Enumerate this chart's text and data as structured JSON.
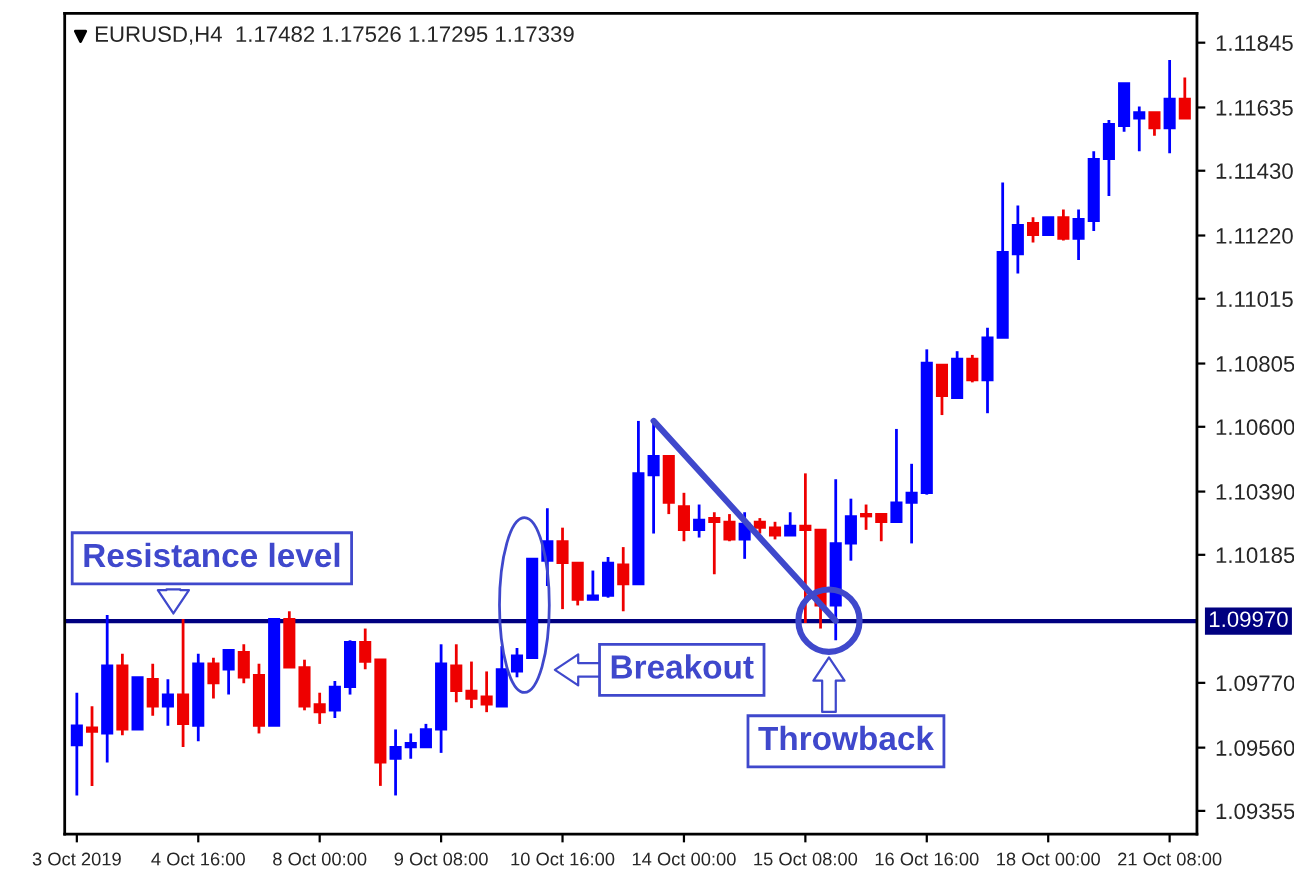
{
  "chart_data": {
    "type": "candlestick",
    "title": "EURUSD,H4  1.17482 1.17526 1.17295 1.17339",
    "categories": [
      "3 Oct 2019",
      null,
      null,
      null,
      null,
      null,
      null,
      null,
      "4 Oct 16:00",
      null,
      null,
      null,
      null,
      null,
      null,
      null,
      "8 Oct 00:00",
      null,
      null,
      null,
      null,
      null,
      null,
      null,
      "9 Oct 08:00",
      null,
      null,
      null,
      null,
      null,
      null,
      null,
      "10 Oct 16:00",
      null,
      null,
      null,
      null,
      null,
      null,
      null,
      "14 Oct 00:00",
      null,
      null,
      null,
      null,
      null,
      null,
      null,
      "15 Oct 08:00",
      null,
      null,
      null,
      null,
      null,
      null,
      null,
      "16 Oct 16:00",
      null,
      null,
      null,
      null,
      null,
      null,
      null,
      "18 Oct 00:00",
      null,
      null,
      null,
      null,
      null,
      null,
      null,
      "21 Oct 08:00",
      null
    ],
    "ohlc": [
      [
        1.09568,
        1.09738,
        1.09405,
        1.09631
      ],
      [
        1.09625,
        1.09694,
        1.09436,
        1.09612
      ],
      [
        1.09606,
        1.0999,
        1.09512,
        1.09826
      ],
      [
        1.09826,
        1.09864,
        1.096,
        1.09619
      ],
      [
        1.09619,
        1.09788,
        1.09619,
        1.09788
      ],
      [
        1.09782,
        1.09832,
        1.09663,
        1.09694
      ],
      [
        1.09694,
        1.09782,
        1.09631,
        1.09732
      ],
      [
        1.09732,
        1.09977,
        1.09562,
        1.09637
      ],
      [
        1.09631,
        1.09864,
        1.09581,
        1.09832
      ],
      [
        1.09832,
        1.09851,
        1.09719,
        1.09769
      ],
      [
        1.09814,
        1.09876,
        1.09732,
        1.09876
      ],
      [
        1.0987,
        1.09895,
        1.09769,
        1.09788
      ],
      [
        1.09795,
        1.09832,
        1.09606,
        1.09631
      ],
      [
        1.09631,
        1.09977,
        1.09631,
        1.09977
      ],
      [
        1.09977,
        1.10002,
        1.0982,
        1.0982
      ],
      [
        1.0982,
        1.09845,
        1.09681,
        1.09694
      ],
      [
        1.097,
        1.09738,
        1.09637,
        1.09675
      ],
      [
        1.09681,
        1.09776,
        1.09656,
        1.09757
      ],
      [
        1.09757,
        1.09908,
        1.09732,
        1.09902
      ],
      [
        1.09902,
        1.09946,
        1.09814,
        1.09839
      ],
      [
        1.09845,
        1.09845,
        1.09436,
        1.09512
      ],
      [
        1.09524,
        1.09619,
        1.09405,
        1.09562
      ],
      [
        1.09562,
        1.09606,
        1.09524,
        1.09575
      ],
      [
        1.09562,
        1.09637,
        1.09562,
        1.09619
      ],
      [
        1.09619,
        1.09895,
        1.09543,
        1.09832
      ],
      [
        1.09826,
        1.09895,
        1.09707,
        1.09744
      ],
      [
        1.09744,
        1.09839,
        1.09688,
        1.09719
      ],
      [
        1.09725,
        1.09807,
        1.09675,
        1.097
      ],
      [
        1.09694,
        1.09889,
        1.09694,
        1.09814
      ],
      [
        1.09807,
        1.09883,
        1.09788,
        1.09858
      ],
      [
        1.09851,
        1.10172,
        1.09851,
        1.10172
      ],
      [
        1.10166,
        1.10336,
        1.10084,
        1.10229
      ],
      [
        1.10229,
        1.10273,
        1.10009,
        1.10159
      ],
      [
        1.10159,
        1.10159,
        1.10021,
        1.1004
      ],
      [
        1.1004,
        1.10134,
        1.1004,
        1.10053
      ],
      [
        1.10053,
        1.10178,
        1.10046,
        1.10159
      ],
      [
        1.10153,
        1.1021,
        1.10002,
        1.1009
      ],
      [
        1.1009,
        1.10619,
        1.1009,
        1.10449
      ],
      [
        1.10443,
        1.10625,
        1.10254,
        1.10505
      ],
      [
        1.10505,
        1.10505,
        1.10317,
        1.10354
      ],
      [
        1.10342,
        1.10386,
        1.10229,
        1.10266
      ],
      [
        1.10266,
        1.10348,
        1.10241,
        1.10298
      ],
      [
        1.10304,
        1.10323,
        1.10122,
        1.10292
      ],
      [
        1.10292,
        1.10317,
        1.10229,
        1.10235
      ],
      [
        1.10235,
        1.10323,
        1.10172,
        1.10285
      ],
      [
        1.10292,
        1.10304,
        1.10254,
        1.10273
      ],
      [
        1.10273,
        1.10292,
        1.10235,
        1.10248
      ],
      [
        1.10248,
        1.10323,
        1.10248,
        1.10279
      ],
      [
        1.10279,
        1.10449,
        1.09964,
        1.10266
      ],
      [
        1.10266,
        1.10266,
        1.09946,
        1.10021
      ],
      [
        1.10021,
        1.1043,
        1.09908,
        1.10222
      ],
      [
        1.10222,
        1.10367,
        1.10166,
        1.1031
      ],
      [
        1.10317,
        1.10348,
        1.10266,
        1.1031
      ],
      [
        1.10317,
        1.10317,
        1.10229,
        1.10292
      ],
      [
        1.10292,
        1.10593,
        1.10292,
        1.10354
      ],
      [
        1.10354,
        1.1048,
        1.10222,
        1.10386
      ],
      [
        1.10386,
        1.10851,
        1.1038,
        1.10807
      ],
      [
        1.10801,
        1.10801,
        1.10638,
        1.107
      ],
      [
        1.10694,
        1.10845,
        1.10694,
        1.1082
      ],
      [
        1.1082,
        1.10833,
        1.10744,
        1.10751
      ],
      [
        1.10751,
        1.10921,
        1.10644,
        1.10889
      ],
      [
        1.10889,
        1.11392,
        1.10889,
        1.11166
      ],
      [
        1.1116,
        1.11317,
        1.11097,
        1.11254
      ],
      [
        1.1126,
        1.11279,
        1.11197,
        1.11222
      ],
      [
        1.11222,
        1.11279,
        1.11222,
        1.11279
      ],
      [
        1.11279,
        1.11304,
        1.11204,
        1.1121
      ],
      [
        1.1121,
        1.11304,
        1.11141,
        1.11273
      ],
      [
        1.11267,
        1.11493,
        1.11235,
        1.11468
      ],
      [
        1.11468,
        1.11594,
        1.11348,
        1.11581
      ],
      [
        1.11575,
        1.11713,
        1.11556,
        1.11713
      ],
      [
        1.116,
        1.11638,
        1.11493,
        1.11619
      ],
      [
        1.11619,
        1.11619,
        1.11543,
        1.11568
      ],
      [
        1.11568,
        1.11789,
        1.11487,
        1.11663
      ],
      [
        1.11663,
        1.11732,
        1.116,
        1.116
      ]
    ],
    "colors": [
      "#0000ff",
      "#ee0000",
      "#0000ff",
      "#ee0000",
      "#0000ff",
      "#ee0000",
      "#0000ff",
      "#ee0000",
      "#0000ff",
      "#ee0000",
      "#0000ff",
      "#ee0000",
      "#ee0000",
      "#0000ff",
      "#ee0000",
      "#ee0000",
      "#ee0000",
      "#0000ff",
      "#0000ff",
      "#ee0000",
      "#ee0000",
      "#0000ff",
      "#0000ff",
      "#0000ff",
      "#0000ff",
      "#ee0000",
      "#ee0000",
      "#ee0000",
      "#0000ff",
      "#0000ff",
      "#0000ff",
      "#0000ff",
      "#ee0000",
      "#ee0000",
      "#0000ff",
      "#0000ff",
      "#ee0000",
      "#0000ff",
      "#0000ff",
      "#ee0000",
      "#ee0000",
      "#0000ff",
      "#ee0000",
      "#ee0000",
      "#0000ff",
      "#ee0000",
      "#ee0000",
      "#0000ff",
      "#ee0000",
      "#ee0000",
      "#0000ff",
      "#0000ff",
      "#ee0000",
      "#ee0000",
      "#0000ff",
      "#0000ff",
      "#0000ff",
      "#ee0000",
      "#0000ff",
      "#ee0000",
      "#0000ff",
      "#0000ff",
      "#0000ff",
      "#ee0000",
      "#0000ff",
      "#ee0000",
      "#0000ff",
      "#0000ff",
      "#0000ff",
      "#0000ff",
      "#0000ff",
      "#ee0000",
      "#0000ff",
      "#ee0000"
    ],
    "series": [
      {
        "type": "line",
        "color": "#3f48cc",
        "values": [
          null,
          null,
          null,
          null,
          null,
          null,
          null,
          null,
          null,
          null,
          null,
          null,
          null,
          null,
          null,
          null,
          null,
          null,
          null,
          null,
          null,
          null,
          null,
          null,
          null,
          null,
          null,
          null,
          null,
          null,
          null,
          null,
          null,
          null,
          null,
          null,
          null,
          null,
          1.10619,
          null,
          null,
          null,
          null,
          null,
          null,
          null,
          null,
          null,
          null,
          null,
          1.09971,
          null,
          null,
          null,
          null,
          null,
          null,
          null,
          null,
          null,
          null,
          null,
          null,
          null,
          null,
          null,
          null,
          null,
          null,
          null,
          null,
          null,
          null,
          null
        ]
      }
    ],
    "ylim": [
      1.0928,
      1.1194
    ],
    "yticks": [
      1.09355,
      {
        "value": 1.0956,
        "label": "1.09560"
      },
      {
        "value": 1.0977,
        "label": "1.09770"
      },
      1.10185,
      {
        "value": 1.1039,
        "label": "1.10390"
      },
      {
        "value": 1.106,
        "label": "1.10600"
      },
      1.10805,
      1.11015,
      {
        "value": 1.1122,
        "label": "1.11220"
      },
      {
        "value": 1.1143,
        "label": "1.11430"
      },
      1.11635,
      1.11845
    ],
    "ref_lines": [
      {
        "axis": "y",
        "value": 1.0997,
        "label": "1.09970",
        "color": "#000080"
      }
    ],
    "annotations": [
      "Resistance level",
      "Breakout",
      "Throwback"
    ],
    "grid": false,
    "legend": false
  }
}
